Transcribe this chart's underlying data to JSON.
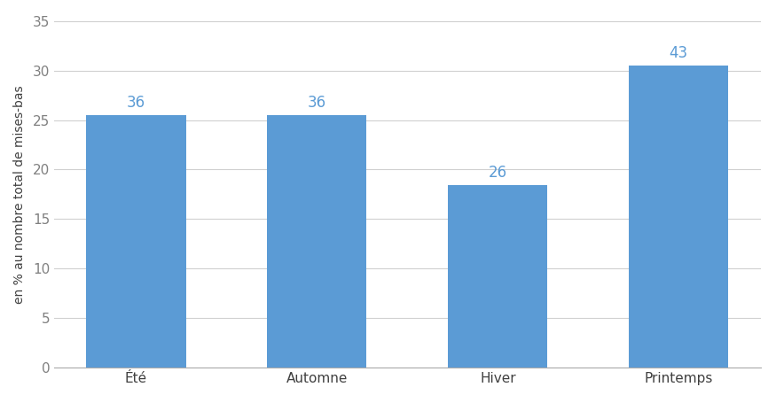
{
  "categories": [
    "Été",
    "Automne",
    "Hiver",
    "Printemps"
  ],
  "values": [
    25.53,
    25.53,
    18.44,
    30.5
  ],
  "labels": [
    36,
    36,
    26,
    43
  ],
  "bar_color": "#5B9BD5",
  "label_color": "#5B9BD5",
  "ylabel": "en % au nombre total de mises-bas",
  "ylim": [
    0,
    35
  ],
  "yticks": [
    0,
    5,
    10,
    15,
    20,
    25,
    30,
    35
  ],
  "grid_color": "#D0D0D0",
  "background_color": "#FFFFFF",
  "bar_width": 0.55,
  "label_fontsize": 12,
  "tick_fontsize": 11,
  "ylabel_fontsize": 10,
  "ytick_color": "#808080",
  "xtick_color": "#404040"
}
